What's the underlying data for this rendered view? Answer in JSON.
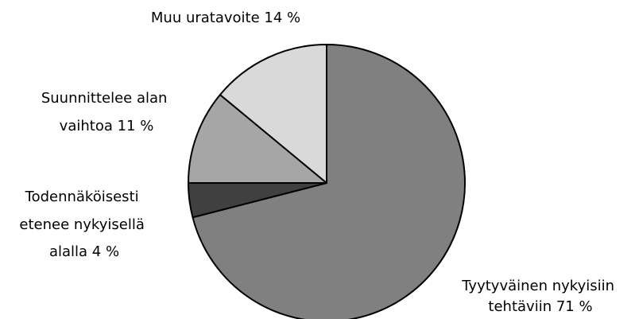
{
  "chart_data": {
    "type": "pie",
    "title": "",
    "slices": [
      {
        "label_lines": [
          "Tyytyväinen nykyisiin",
          "tehtäviin 71 %"
        ],
        "value": 71,
        "color": "#808080"
      },
      {
        "label_lines": [
          "Todennäköisesti",
          "etenee nykyisellä",
          "alalla  4 %"
        ],
        "value": 4,
        "color": "#404040"
      },
      {
        "label_lines": [
          "Suunnittelee alan",
          "vaihtoa 11 %"
        ],
        "value": 11,
        "color": "#a6a6a6"
      },
      {
        "label_lines": [
          "Muu uratavoite 14 %"
        ],
        "value": 14,
        "color": "#d9d9d9"
      }
    ],
    "start": "12 o'clock",
    "direction": "clockwise",
    "legend": "none"
  }
}
